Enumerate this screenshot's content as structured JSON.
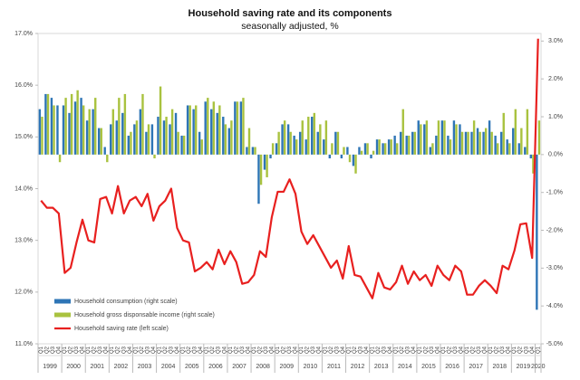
{
  "chart_data": {
    "type": "bar_line",
    "title": "Household saving rate and its components",
    "subtitle": "seasonally adjusted, %",
    "categories": [
      "Q1",
      "Q2",
      "Q3",
      "Q4",
      "Q1",
      "Q2",
      "Q3",
      "Q4",
      "Q1",
      "Q2",
      "Q3",
      "Q4",
      "Q1",
      "Q2",
      "Q3",
      "Q4",
      "Q1",
      "Q2",
      "Q3",
      "Q4",
      "Q1",
      "Q2",
      "Q3",
      "Q4",
      "Q1",
      "Q2",
      "Q3",
      "Q4",
      "Q1",
      "Q2",
      "Q3",
      "Q4",
      "Q1",
      "Q2",
      "Q3",
      "Q4",
      "Q1",
      "Q2",
      "Q3",
      "Q4",
      "Q1",
      "Q2",
      "Q3",
      "Q4",
      "Q1",
      "Q2",
      "Q3",
      "Q4",
      "Q1",
      "Q2",
      "Q3",
      "Q4",
      "Q1",
      "Q2",
      "Q3",
      "Q4",
      "Q1",
      "Q2",
      "Q3",
      "Q4",
      "Q1",
      "Q2",
      "Q3",
      "Q4",
      "Q1",
      "Q2",
      "Q3",
      "Q4",
      "Q1",
      "Q2",
      "Q3",
      "Q4",
      "Q1",
      "Q2",
      "Q3",
      "Q4",
      "Q1",
      "Q2",
      "Q3",
      "Q4",
      "Q1",
      "Q2",
      "Q3",
      "Q4",
      "Q1"
    ],
    "years": [
      "1999",
      "2000",
      "2001",
      "2002",
      "2003",
      "2004",
      "2005",
      "2006",
      "2007",
      "2008",
      "2009",
      "2010",
      "2011",
      "2012",
      "2013",
      "2014",
      "2015",
      "2016",
      "2017",
      "2018",
      "2019",
      "2020"
    ],
    "series": [
      {
        "name": "Household consumption (right scale)",
        "color": "#2e75b6",
        "axis": "y2",
        "kind": "bar",
        "values": [
          1.2,
          1.6,
          1.5,
          1.3,
          1.3,
          1.1,
          1.4,
          1.5,
          0.9,
          1.2,
          0.7,
          0.2,
          0.8,
          0.9,
          1.1,
          0.5,
          0.8,
          1.2,
          0.6,
          0.8,
          1.0,
          0.9,
          0.8,
          1.1,
          0.5,
          1.3,
          1.2,
          0.6,
          1.4,
          1.2,
          1.1,
          1.0,
          0.7,
          1.4,
          1.4,
          0.2,
          0.2,
          -1.3,
          -0.4,
          -0.1,
          0.3,
          0.8,
          0.8,
          0.5,
          0.6,
          0.4,
          1.0,
          0.6,
          0.4,
          -0.1,
          0.6,
          -0.1,
          0.2,
          -0.3,
          0.2,
          0.3,
          -0.1,
          0.4,
          0.3,
          0.4,
          0.5,
          0.6,
          0.5,
          0.6,
          0.9,
          0.8,
          0.2,
          0.5,
          0.9,
          0.5,
          0.9,
          0.8,
          0.6,
          0.6,
          0.7,
          0.6,
          0.9,
          0.5,
          0.6,
          0.4,
          0.7,
          0.3,
          0.2,
          -0.1,
          -4.1
        ]
      },
      {
        "name": "Household gross disponsable income (right scale)",
        "color": "#a9c23f",
        "axis": "y2",
        "kind": "bar",
        "values": [
          1.0,
          1.6,
          1.3,
          -0.2,
          1.5,
          1.6,
          1.7,
          1.3,
          1.2,
          1.5,
          0.7,
          -0.2,
          1.2,
          1.5,
          1.6,
          0.6,
          0.9,
          1.6,
          0.8,
          -0.1,
          1.8,
          1.0,
          1.2,
          0.6,
          0.5,
          1.3,
          1.3,
          0.4,
          1.5,
          1.4,
          1.3,
          0.8,
          0.9,
          1.4,
          1.5,
          0.7,
          0.2,
          -0.8,
          -0.6,
          0.3,
          0.6,
          0.9,
          0.6,
          0.4,
          0.9,
          1.0,
          1.1,
          0.8,
          0.9,
          0.3,
          0.6,
          0.2,
          -0.2,
          -0.5,
          0.1,
          0.3,
          0.1,
          0.4,
          0.3,
          0.4,
          0.3,
          1.2,
          0.5,
          0.6,
          0.8,
          0.9,
          0.3,
          0.9,
          0.9,
          0.4,
          0.8,
          0.6,
          0.6,
          0.9,
          0.6,
          0.7,
          0.6,
          0.3,
          1.1,
          0.3,
          1.2,
          0.7,
          1.2,
          -0.5,
          0.9
        ]
      },
      {
        "name": "Household saving rate (left scale)",
        "color": "#e8201f",
        "kind": "line",
        "values": [
          13.77,
          13.63,
          13.63,
          13.52,
          12.37,
          12.47,
          12.96,
          13.4,
          13.0,
          12.96,
          13.8,
          13.84,
          13.52,
          14.05,
          13.52,
          13.77,
          13.84,
          13.66,
          13.9,
          13.38,
          13.66,
          13.77,
          14.0,
          13.24,
          13.0,
          12.96,
          12.4,
          12.47,
          12.58,
          12.44,
          12.82,
          12.54,
          12.79,
          12.58,
          12.16,
          12.19,
          12.33,
          12.79,
          12.68,
          13.45,
          13.94,
          13.94,
          14.18,
          13.9,
          13.17,
          12.93,
          13.1,
          12.89,
          12.68,
          12.47,
          12.61,
          12.26,
          12.89,
          12.33,
          12.3,
          12.09,
          11.88,
          12.37,
          12.09,
          12.05,
          12.19,
          12.51,
          12.16,
          12.4,
          12.23,
          12.33,
          12.12,
          12.51,
          12.33,
          12.23,
          12.51,
          12.4,
          11.95,
          11.95,
          12.12,
          12.23,
          12.12,
          11.98,
          12.51,
          12.44,
          12.8,
          13.31,
          13.33,
          12.66,
          16.9
        ]
      }
    ],
    "ylim": [
      11,
      17
    ],
    "yticks": [
      {
        "value": 11,
        "label": "11.0%"
      },
      {
        "value": 12,
        "label": "12.0%"
      },
      {
        "value": 13,
        "label": "13.0%"
      },
      {
        "value": 14,
        "label": "14.0%"
      },
      {
        "value": 15,
        "label": "15.0%"
      },
      {
        "value": 16,
        "label": "16.0%"
      },
      {
        "value": 17,
        "label": "17.0%"
      }
    ],
    "y2lim": [
      -5,
      3.2
    ],
    "y2ticks": [
      {
        "value": -5,
        "label": "-5.0%"
      },
      {
        "value": -4,
        "label": "-4.0%"
      },
      {
        "value": -3,
        "label": "-3.0%"
      },
      {
        "value": -2,
        "label": "-2.0%"
      },
      {
        "value": -1,
        "label": "-1.0%"
      },
      {
        "value": 0,
        "label": "0.0%"
      },
      {
        "value": 1,
        "label": "1.0%"
      },
      {
        "value": 2,
        "label": "2.0%"
      },
      {
        "value": 3,
        "label": "3.0%"
      }
    ],
    "legend": "lower left"
  }
}
